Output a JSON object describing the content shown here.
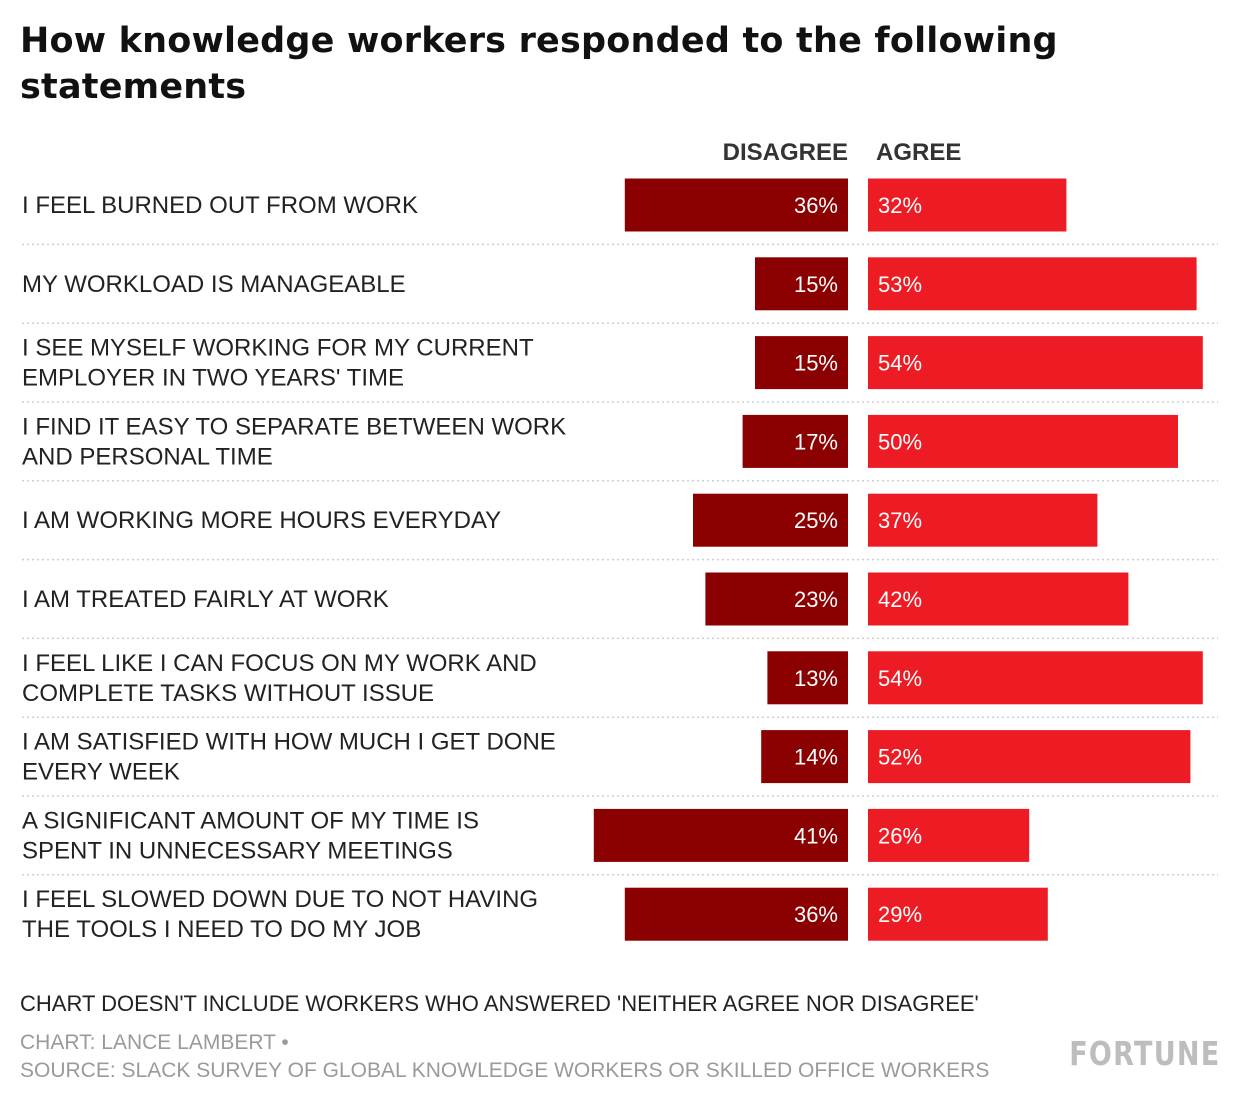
{
  "title": "How knowledge workers responded to the following statements",
  "chart_data": {
    "type": "bar",
    "title": "How knowledge workers responded to the following statements",
    "columns": [
      "DISAGREE",
      "AGREE"
    ],
    "categories": [
      [
        "I FEEL BURNED OUT FROM WORK"
      ],
      [
        "MY WORKLOAD IS MANAGEABLE"
      ],
      [
        "I SEE MYSELF WORKING FOR MY CURRENT",
        "EMPLOYER IN TWO YEARS' TIME"
      ],
      [
        "I FIND IT EASY TO SEPARATE BETWEEN WORK",
        "AND PERSONAL TIME"
      ],
      [
        "I AM WORKING MORE HOURS EVERYDAY"
      ],
      [
        "I AM TREATED FAIRLY AT WORK"
      ],
      [
        "I FEEL LIKE I CAN FOCUS ON MY WORK AND",
        "COMPLETE TASKS WITHOUT ISSUE"
      ],
      [
        "I AM SATISFIED WITH HOW MUCH I GET DONE",
        "EVERY WEEK"
      ],
      [
        "A SIGNIFICANT AMOUNT OF MY TIME IS",
        "SPENT IN UNNECESSARY MEETINGS"
      ],
      [
        "I FEEL SLOWED DOWN DUE TO NOT HAVING",
        "THE TOOLS I NEED TO DO MY JOB"
      ]
    ],
    "series": [
      {
        "name": "DISAGREE",
        "color": "#8b0000",
        "values": [
          36,
          15,
          15,
          17,
          25,
          23,
          13,
          14,
          41,
          36
        ]
      },
      {
        "name": "AGREE",
        "color": "#ed1c24",
        "values": [
          32,
          53,
          54,
          50,
          37,
          42,
          54,
          52,
          26,
          29
        ]
      }
    ],
    "value_suffix": "%",
    "grid": false
  },
  "footer": {
    "note": "CHART DOESN'T INCLUDE WORKERS WHO ANSWERED 'NEITHER AGREE NOR DISAGREE'",
    "credit": "CHART: LANCE LAMBERT •",
    "source": "SOURCE: SLACK SURVEY OF GLOBAL KNOWLEDGE WORKERS OR SKILLED OFFICE WORKERS",
    "brand": "FORTUNE"
  }
}
